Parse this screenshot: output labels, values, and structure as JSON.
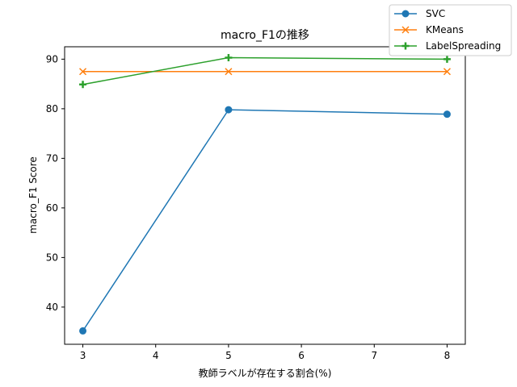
{
  "chart_data": {
    "type": "line",
    "title": "macro_F1の推移",
    "xlabel": "教師ラベルが存在する割合(%)",
    "ylabel": "macro_F1 Score",
    "x": [
      3,
      5,
      8
    ],
    "xlim": [
      2.75,
      8.25
    ],
    "ylim": [
      32.5,
      92.5
    ],
    "xticks": [
      3,
      4,
      5,
      6,
      7,
      8
    ],
    "yticks": [
      40,
      50,
      60,
      70,
      80,
      90
    ],
    "grid": false,
    "legend_position": "top-right",
    "series": [
      {
        "name": "SVC",
        "values": [
          35.2,
          79.8,
          78.9
        ],
        "color": "#1f77b4",
        "marker": "circle"
      },
      {
        "name": "KMeans",
        "values": [
          87.5,
          87.5,
          87.5
        ],
        "color": "#ff7f0e",
        "marker": "x"
      },
      {
        "name": "LabelSpreading",
        "values": [
          84.9,
          90.3,
          90.0
        ],
        "color": "#2ca02c",
        "marker": "plus"
      }
    ]
  }
}
